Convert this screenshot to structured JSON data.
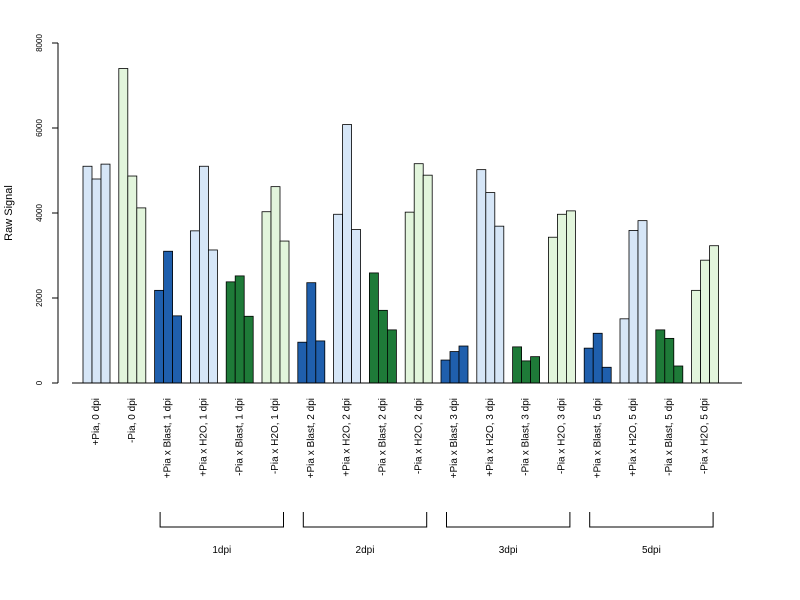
{
  "chart_data": {
    "type": "bar",
    "ylabel": "Raw Signal",
    "ylim": [
      0,
      8000
    ],
    "yticks": [
      0,
      2000,
      4000,
      6000,
      8000
    ],
    "grid": false,
    "colors": {
      "light_blue": "#d6e6f7",
      "light_green": "#e2f5dc",
      "dark_blue": "#1f5fad",
      "dark_green": "#1e7a38"
    },
    "groups": [
      {
        "label": "+Pia, 0 dpi",
        "color": "light_blue",
        "values": [
          5100,
          4800,
          5150
        ]
      },
      {
        "label": "-Pia, 0 dpi",
        "color": "light_green",
        "values": [
          7400,
          4870,
          4120
        ]
      },
      {
        "label": "+Pia x Blast, 1 dpi",
        "color": "dark_blue",
        "values": [
          2180,
          3100,
          1580
        ]
      },
      {
        "label": "+Pia x H2O, 1 dpi",
        "color": "light_blue",
        "values": [
          3580,
          5100,
          3130
        ]
      },
      {
        "label": "-Pia x Blast, 1 dpi",
        "color": "dark_green",
        "values": [
          2380,
          2520,
          1570
        ]
      },
      {
        "label": "-Pia x H2O, 1 dpi",
        "color": "light_green",
        "values": [
          4030,
          4620,
          3340
        ]
      },
      {
        "label": "+Pia x Blast, 2 dpi",
        "color": "dark_blue",
        "values": [
          960,
          2360,
          990
        ]
      },
      {
        "label": "+Pia x H2O, 2 dpi",
        "color": "light_blue",
        "values": [
          3970,
          6080,
          3610
        ]
      },
      {
        "label": "-Pia x Blast, 2 dpi",
        "color": "dark_green",
        "values": [
          2590,
          1710,
          1250
        ]
      },
      {
        "label": "-Pia x H2O, 2 dpi",
        "color": "light_green",
        "values": [
          4020,
          5160,
          4890
        ]
      },
      {
        "label": "+Pia x Blast, 3 dpi",
        "color": "dark_blue",
        "values": [
          540,
          740,
          870
        ]
      },
      {
        "label": "+Pia x H2O, 3 dpi",
        "color": "light_blue",
        "values": [
          5020,
          4480,
          3690
        ]
      },
      {
        "label": "-Pia x Blast, 3 dpi",
        "color": "dark_green",
        "values": [
          850,
          520,
          620
        ]
      },
      {
        "label": "-Pia x H2O, 3 dpi",
        "color": "light_green",
        "values": [
          3430,
          3970,
          4050
        ]
      },
      {
        "label": "+Pia x Blast, 5 dpi",
        "color": "dark_blue",
        "values": [
          820,
          1170,
          370
        ]
      },
      {
        "label": "+Pia x H2O, 5 dpi",
        "color": "light_blue",
        "values": [
          1510,
          3590,
          3820
        ]
      },
      {
        "label": "-Pia x Blast, 5 dpi",
        "color": "dark_green",
        "values": [
          1250,
          1050,
          400
        ]
      },
      {
        "label": "-Pia x H2O, 5 dpi",
        "color": "light_green",
        "values": [
          2180,
          2890,
          3230
        ]
      }
    ],
    "brackets": [
      {
        "label": "1dpi",
        "from_group": 2,
        "to_group": 5
      },
      {
        "label": "2dpi",
        "from_group": 6,
        "to_group": 9
      },
      {
        "label": "3dpi",
        "from_group": 10,
        "to_group": 13
      },
      {
        "label": "5dpi",
        "from_group": 14,
        "to_group": 17
      }
    ]
  }
}
